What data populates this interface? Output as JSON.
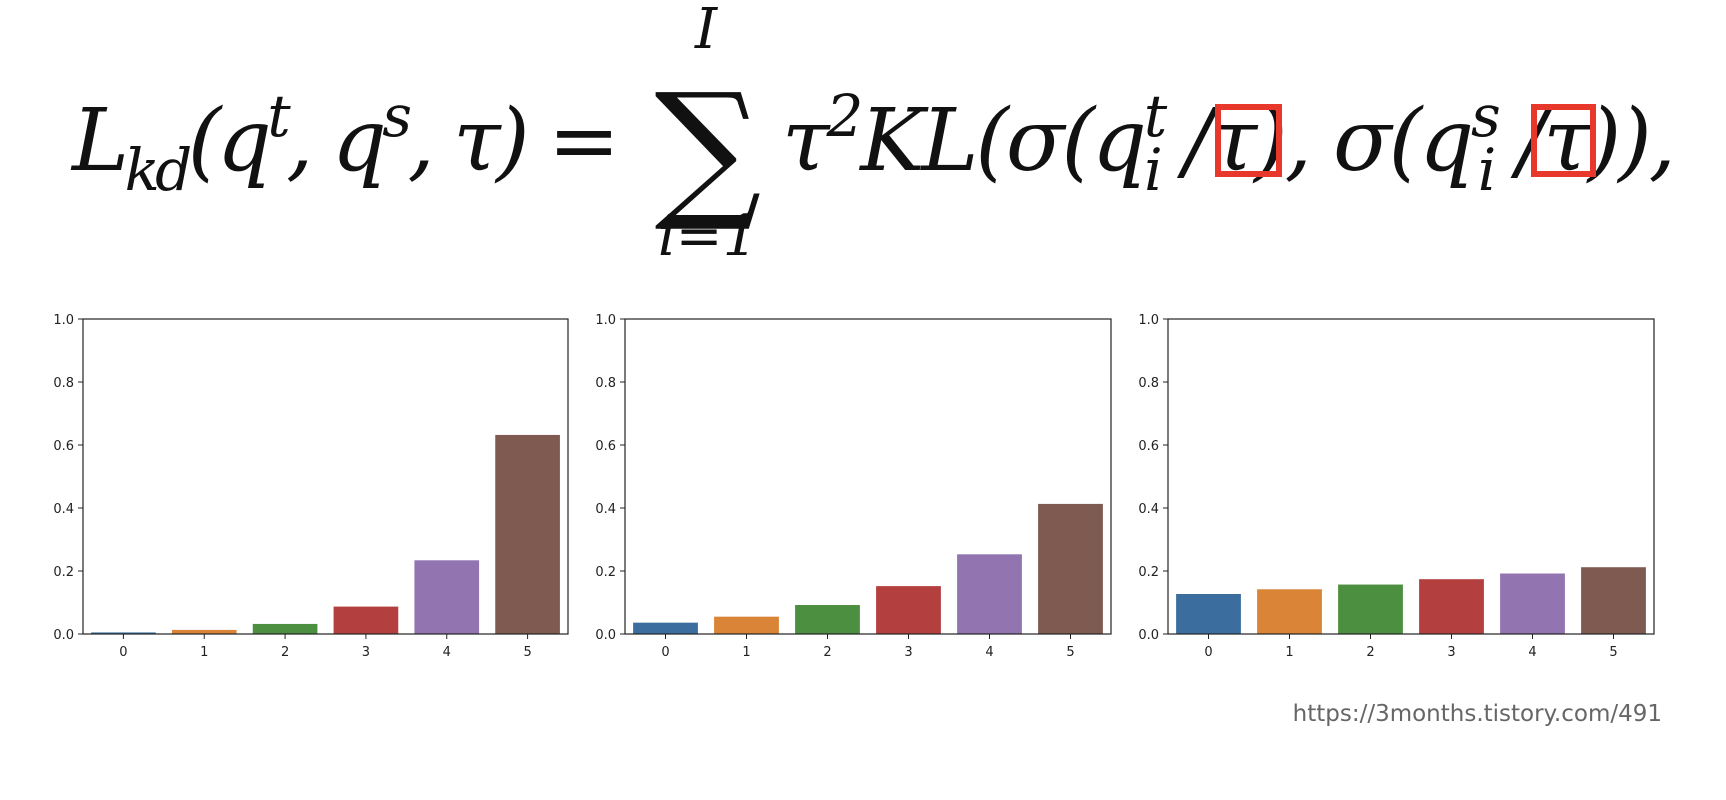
{
  "formula": [
    "L",
    "kd",
    "(q",
    "t",
    ", q",
    "s",
    ", τ) =",
    "∑",
    "I",
    "i=1",
    "τ",
    "2",
    "KL(σ(q",
    "t",
    "i",
    " /",
    "τ",
    "), σ(q",
    "s",
    "i",
    " /",
    "τ",
    ")),"
  ],
  "chart_data": [
    {
      "type": "bar",
      "categories": [
        "0",
        "1",
        "2",
        "3",
        "4",
        "5"
      ],
      "values": [
        0.005,
        0.013,
        0.032,
        0.087,
        0.234,
        0.632
      ],
      "colors": [
        "#3b6e9f",
        "#d98437",
        "#4d8f40",
        "#b33f3f",
        "#9174b0",
        "#7e5a50"
      ],
      "ylim": [
        0,
        1
      ],
      "yticks": [
        {
          "value": 0,
          "label": "0.0"
        },
        0.2,
        0.4,
        0.6,
        0.8,
        {
          "value": 1,
          "label": "1.0"
        }
      ]
    },
    {
      "type": "bar",
      "categories": [
        "0",
        "1",
        "2",
        "3",
        "4",
        "5"
      ],
      "values": [
        0.036,
        0.055,
        0.092,
        0.152,
        0.253,
        0.413
      ],
      "colors": [
        "#3b6e9f",
        "#d98437",
        "#4d8f40",
        "#b33f3f",
        "#9174b0",
        "#7e5a50"
      ],
      "ylim": [
        0,
        1
      ],
      "yticks": [
        {
          "value": 0,
          "label": "0.0"
        },
        0.2,
        0.4,
        0.6,
        0.8,
        {
          "value": 1,
          "label": "1.0"
        }
      ]
    },
    {
      "type": "bar",
      "categories": [
        "0",
        "1",
        "2",
        "3",
        "4",
        "5"
      ],
      "values": [
        0.127,
        0.142,
        0.157,
        0.174,
        0.192,
        0.212
      ],
      "colors": [
        "#3b6e9f",
        "#d98437",
        "#4d8f40",
        "#b33f3f",
        "#9174b0",
        "#7e5a50"
      ],
      "ylim": [
        0,
        1
      ],
      "yticks": [
        {
          "value": 0,
          "label": "0.0"
        },
        0.2,
        0.4,
        0.6,
        0.8,
        {
          "value": 1,
          "label": "1.0"
        }
      ]
    }
  ],
  "source": "https://3months.tistory.com/491"
}
